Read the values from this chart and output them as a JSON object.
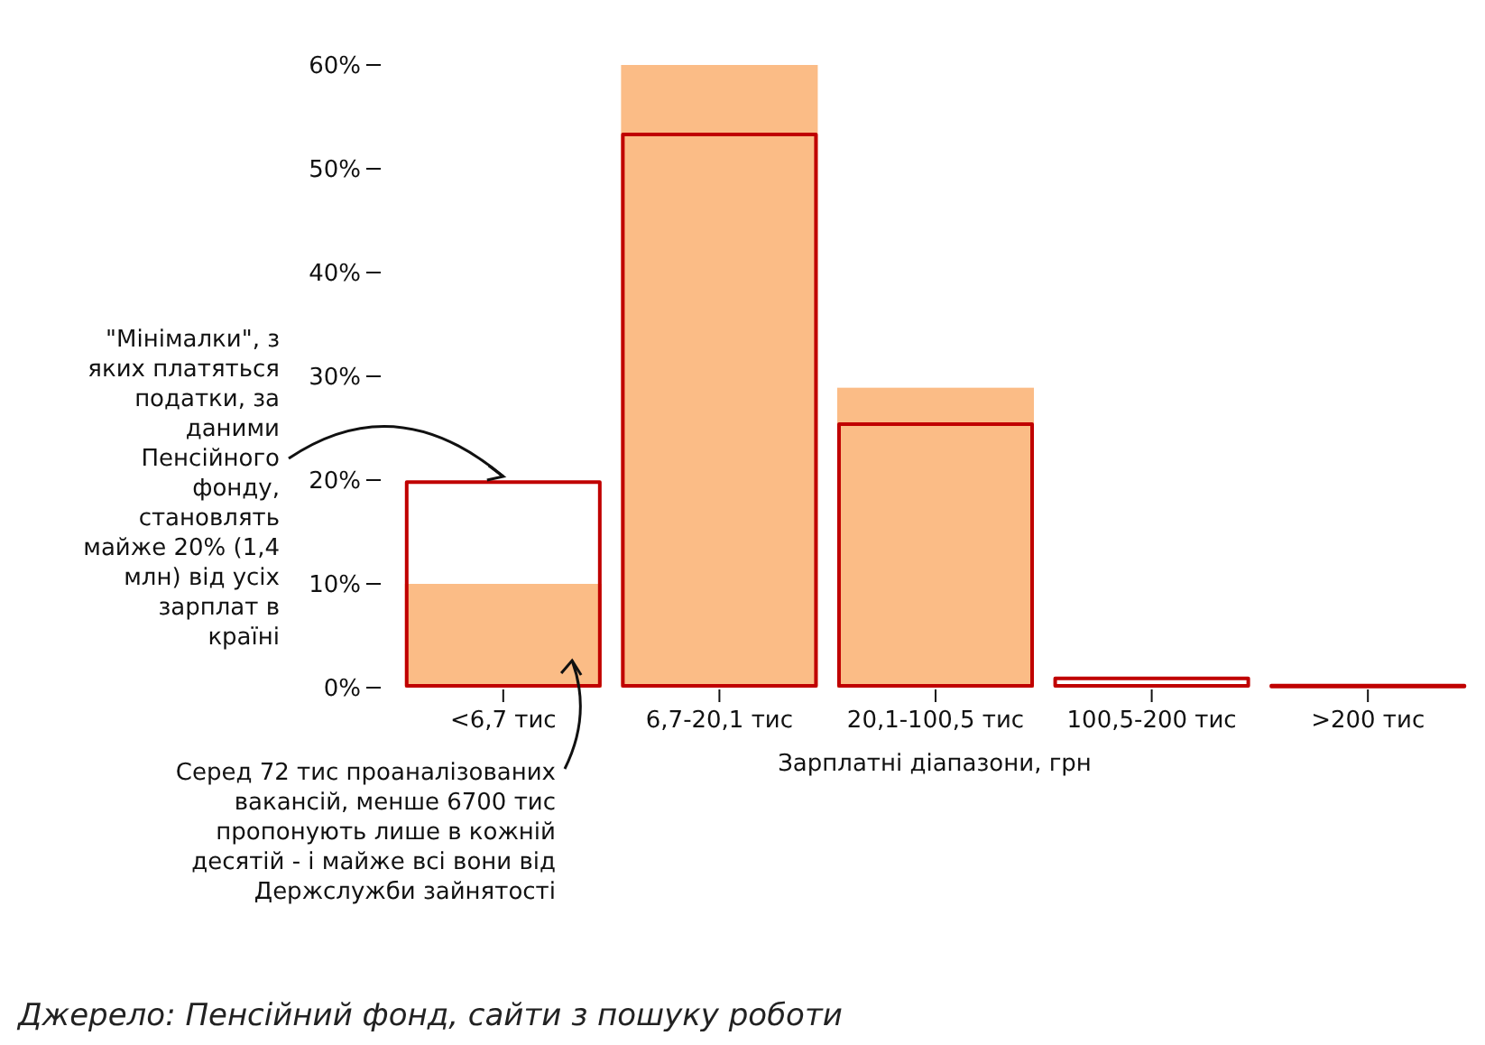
{
  "chart_data": {
    "type": "bar",
    "xlabel": "Зарплатні діапазони, грн",
    "categories": [
      "<6,7 тис",
      "6,7-20,1 тис",
      "20,1-100,5 тис",
      "100,5-200 тис",
      ">200 тис"
    ],
    "series": [
      {
        "color": "#fbbc86",
        "values": [
          10,
          60,
          28.9,
          0,
          0
        ]
      },
      {
        "color": "#c00000",
        "values": [
          19.8,
          53.3,
          25.4,
          0.9,
          0.2
        ]
      }
    ],
    "ylim": [
      0,
      60
    ],
    "yticks": [
      {
        "value": 0,
        "label": "0%"
      },
      {
        "value": 10,
        "label": "10%"
      },
      {
        "value": 20,
        "label": "20%"
      },
      {
        "value": 30,
        "label": "30%"
      },
      {
        "value": 40,
        "label": "40%"
      },
      {
        "value": 50,
        "label": "50%"
      },
      {
        "value": 60,
        "label": "60%"
      }
    ],
    "grid": false,
    "annotations": [
      "\"Мінімалки\", з яких платяться податки, за даними Пенсійного фонду, становлять майже 20% (1,4 млн) від усіх зарплат в країні",
      "Серед 72 тис проаналізованих вакансій, менше 6700 тис пропонують лише в кожній десятій - і майже всі вони від Держслужби зайнятості",
      "Джерело: Пенсійний фонд, сайти з пошуку роботи"
    ]
  }
}
